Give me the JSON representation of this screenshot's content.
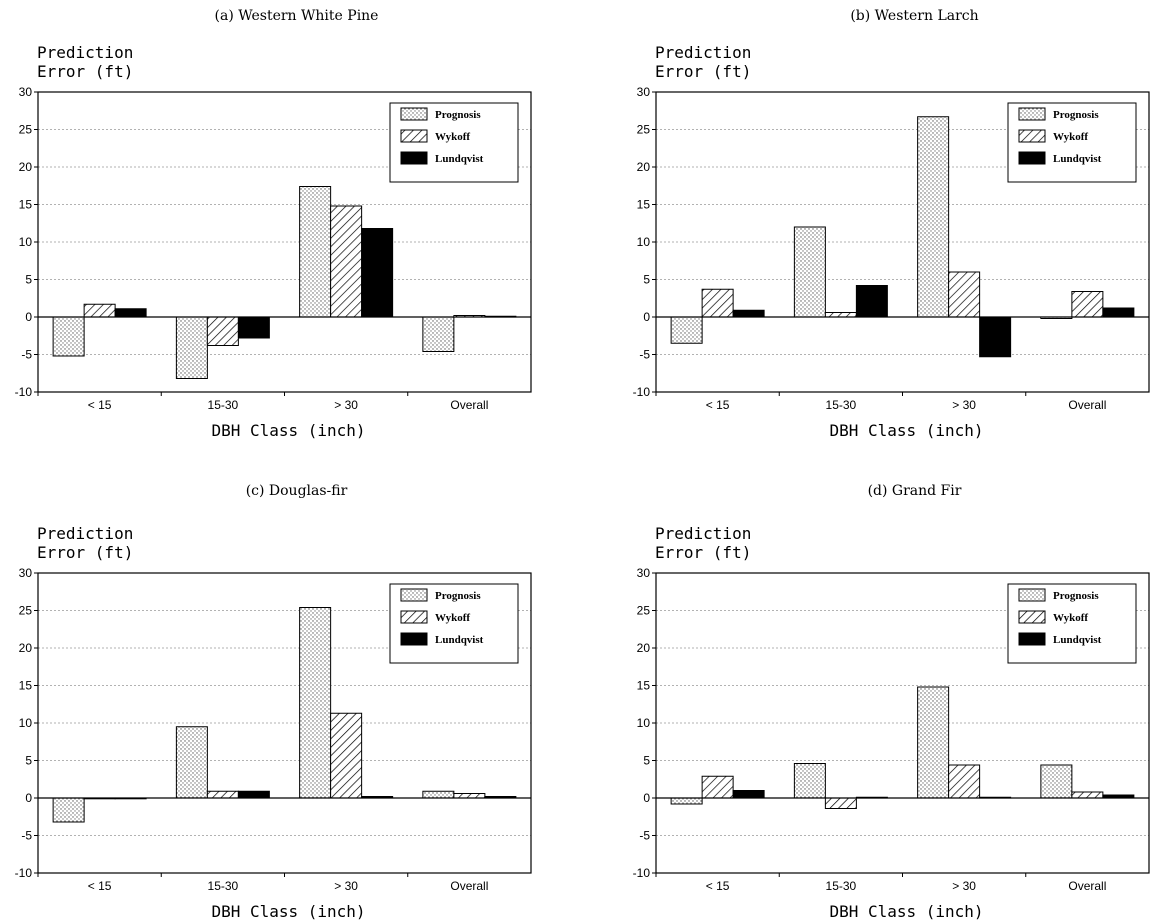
{
  "chart_data": [
    {
      "type": "bar",
      "title": "(a) Western White Pine",
      "ylabel": "Prediction\nError (ft)",
      "xlabel": "DBH Class (inch)",
      "categories": [
        "< 15",
        "15-30",
        "> 30",
        "Overall"
      ],
      "ylim": [
        -10,
        30
      ],
      "yticks": [
        -10,
        -5,
        0,
        5,
        10,
        15,
        20,
        25,
        30
      ],
      "grid": true,
      "legend_position": "top-right",
      "series": [
        {
          "name": "Prognosis",
          "values": [
            -5.2,
            -8.2,
            17.4,
            -4.6
          ]
        },
        {
          "name": "Wykoff",
          "values": [
            1.7,
            -3.8,
            14.8,
            0.2
          ]
        },
        {
          "name": "Lundqvist",
          "values": [
            1.1,
            -2.8,
            11.8,
            0.1
          ]
        }
      ]
    },
    {
      "type": "bar",
      "title": "(b) Western Larch",
      "ylabel": "Prediction\nError (ft)",
      "xlabel": "DBH Class (inch)",
      "categories": [
        "< 15",
        "15-30",
        "> 30",
        "Overall"
      ],
      "ylim": [
        -10,
        30
      ],
      "yticks": [
        -10,
        -5,
        0,
        5,
        10,
        15,
        20,
        25,
        30
      ],
      "grid": true,
      "legend_position": "top-right",
      "series": [
        {
          "name": "Prognosis",
          "values": [
            -3.5,
            12.0,
            26.7,
            -0.2
          ]
        },
        {
          "name": "Wykoff",
          "values": [
            3.7,
            0.6,
            6.0,
            3.4
          ]
        },
        {
          "name": "Lundqvist",
          "values": [
            0.9,
            4.2,
            -5.3,
            1.2
          ]
        }
      ]
    },
    {
      "type": "bar",
      "title": "(c) Douglas-fir",
      "ylabel": "Prediction\nError (ft)",
      "xlabel": "DBH Class (inch)",
      "categories": [
        "< 15",
        "15-30",
        "> 30",
        "Overall"
      ],
      "ylim": [
        -10,
        30
      ],
      "yticks": [
        -10,
        -5,
        0,
        5,
        10,
        15,
        20,
        25,
        30
      ],
      "grid": true,
      "legend_position": "top-right",
      "series": [
        {
          "name": "Prognosis",
          "values": [
            -3.2,
            9.5,
            25.4,
            0.9
          ]
        },
        {
          "name": "Wykoff",
          "values": [
            0.0,
            0.9,
            11.3,
            0.6
          ]
        },
        {
          "name": "Lundqvist",
          "values": [
            0.0,
            0.9,
            0.2,
            0.2
          ]
        }
      ]
    },
    {
      "type": "bar",
      "title": "(d) Grand Fir",
      "ylabel": "Prediction\nError (ft)",
      "xlabel": "DBH Class (inch)",
      "categories": [
        "< 15",
        "15-30",
        "> 30",
        "Overall"
      ],
      "ylim": [
        -10,
        30
      ],
      "yticks": [
        -10,
        -5,
        0,
        5,
        10,
        15,
        20,
        25,
        30
      ],
      "grid": true,
      "legend_position": "top-right",
      "series": [
        {
          "name": "Prognosis",
          "values": [
            -0.8,
            4.6,
            14.8,
            4.4
          ]
        },
        {
          "name": "Wykoff",
          "values": [
            2.9,
            -1.4,
            4.4,
            0.8
          ]
        },
        {
          "name": "Lundqvist",
          "values": [
            1.0,
            0.1,
            0.1,
            0.4
          ]
        }
      ]
    }
  ]
}
